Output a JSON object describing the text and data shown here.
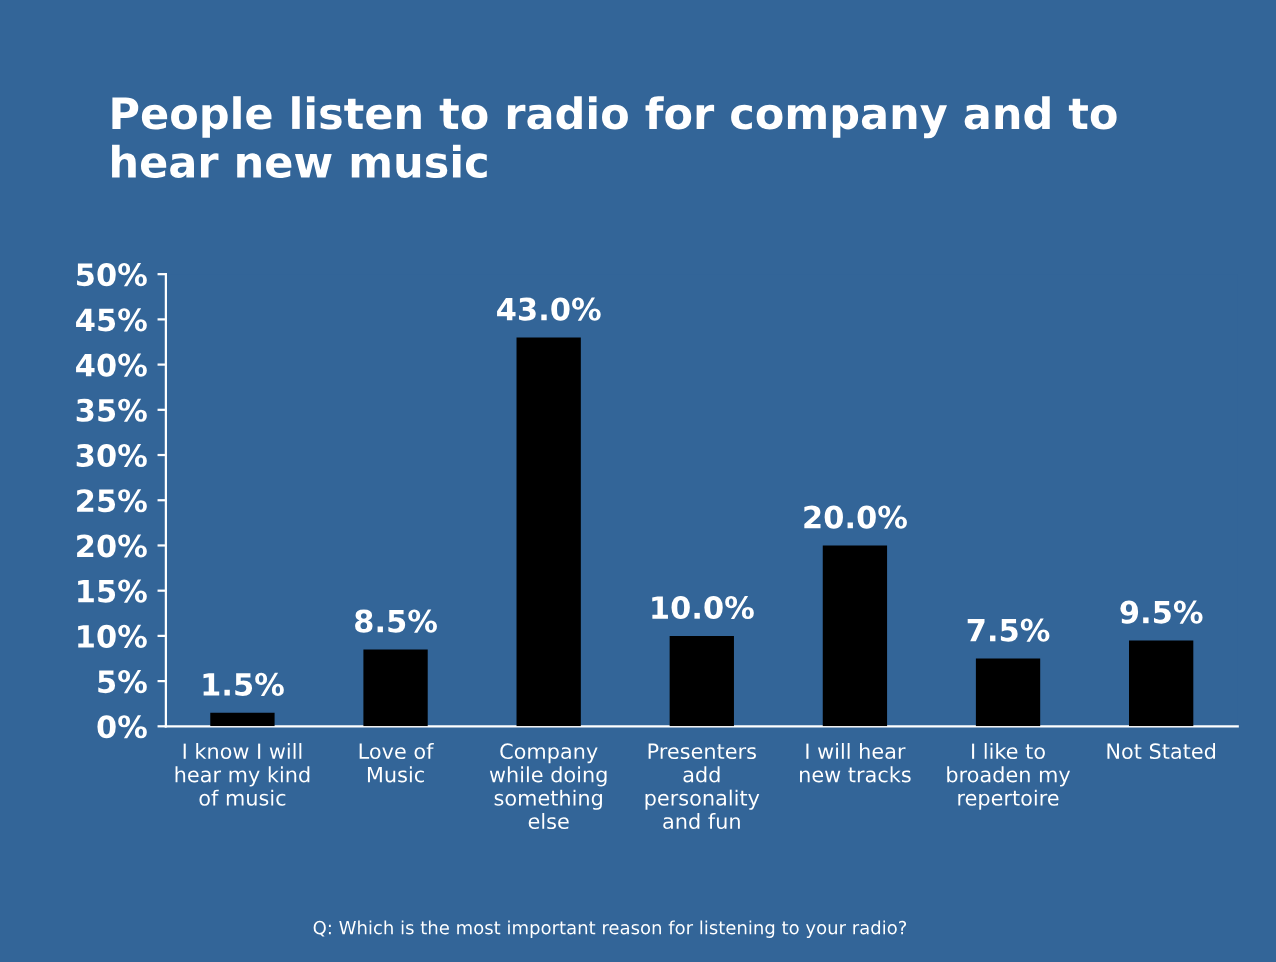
{
  "chart_data": {
    "type": "bar",
    "title": "People listen to radio for company and to\nhear new music",
    "categories": [
      "I know I will\nhear my kind\nof music",
      "Love of\nMusic",
      "Company\nwhile doing\nsomething\nelse",
      "Presenters\nadd\npersonality\nand fun",
      "I will hear\nnew tracks",
      "I like to\nbroaden my\nrepertoire",
      "Not Stated"
    ],
    "values": [
      1.5,
      8.5,
      43.0,
      10.0,
      20.0,
      7.5,
      9.5
    ],
    "value_labels": [
      "1.5%",
      "8.5%",
      "43.0%",
      "10.0%",
      "20.0%",
      "7.5%",
      "9.5%"
    ],
    "color": "#000000",
    "ylim": [
      0,
      50
    ],
    "yticks": [
      {
        "value": 0,
        "label": "0%"
      },
      {
        "value": 5,
        "label": "5%"
      },
      {
        "value": 10,
        "label": "10%"
      },
      {
        "value": 15,
        "label": "15%"
      },
      {
        "value": 20,
        "label": "20%"
      },
      {
        "value": 25,
        "label": "25%"
      },
      {
        "value": 30,
        "label": "30%"
      },
      {
        "value": 35,
        "label": "35%"
      },
      {
        "value": 40,
        "label": "40%"
      },
      {
        "value": 45,
        "label": "45%"
      },
      {
        "value": 50,
        "label": "50%"
      }
    ],
    "grid": false,
    "annotations": [
      "Q: Which is the most important reason for listening to your radio?"
    ]
  }
}
